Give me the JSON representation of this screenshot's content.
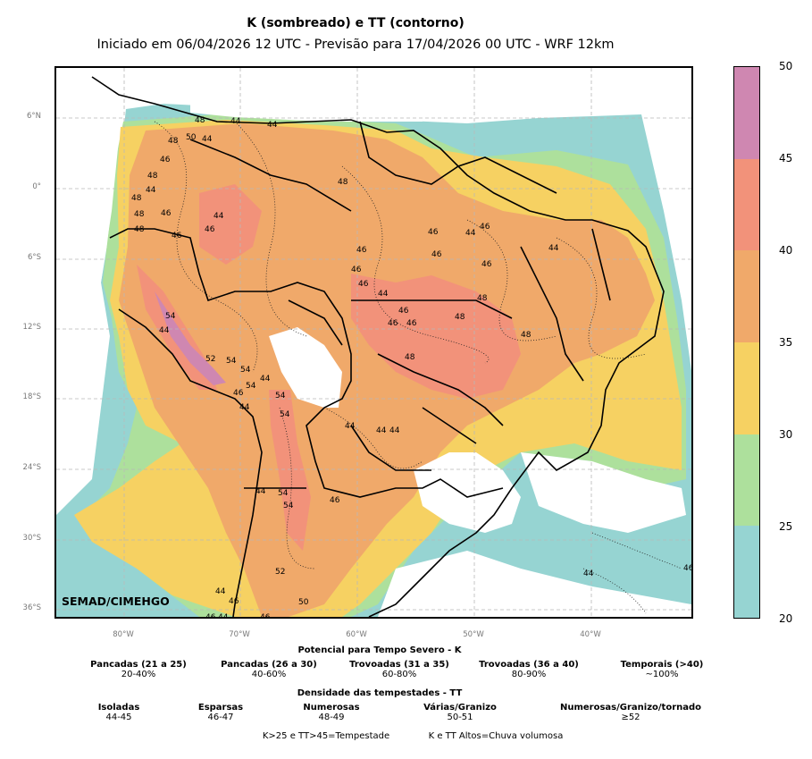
{
  "title": "K (sombreado) e TT (contorno)",
  "subtitle": "Iniciado em 06/04/2026 12 UTC - Previsão para 17/04/2026 00 UTC - WRF 12km",
  "credit": "SEMAD/CIMEHGO",
  "lat_labels": [
    "6°N",
    "0°",
    "6°S",
    "12°S",
    "18°S",
    "24°S",
    "30°S",
    "36°S"
  ],
  "lon_labels": [
    "80°W",
    "70°W",
    "60°W",
    "50°W",
    "40°W"
  ],
  "colorbar": {
    "ticks": [
      "50",
      "45",
      "40",
      "35",
      "30",
      "25",
      "20"
    ],
    "bins": [
      {
        "range": "45-50",
        "color": "#cf87b1"
      },
      {
        "range": "40-45",
        "color": "#f2927a"
      },
      {
        "range": "35-40",
        "color": "#f0a96a"
      },
      {
        "range": "30-35",
        "color": "#f6d162"
      },
      {
        "range": "25-30",
        "color": "#ade09c"
      },
      {
        "range": "20-25",
        "color": "#96d4d2"
      }
    ]
  },
  "contour_labels": [
    "48",
    "44",
    "44",
    "48",
    "50",
    "44",
    "46",
    "48",
    "44",
    "48",
    "48",
    "46",
    "44",
    "48",
    "46",
    "48",
    "46",
    "46",
    "44",
    "46",
    "44",
    "46",
    "46",
    "46",
    "46",
    "44",
    "46",
    "46",
    "48",
    "46",
    "46",
    "48",
    "48",
    "54",
    "44",
    "52",
    "54",
    "54",
    "44",
    "46",
    "54",
    "44",
    "54",
    "54",
    "44",
    "44",
    "44",
    "48",
    "44",
    "54",
    "54",
    "46",
    "52",
    "44",
    "46",
    "50",
    "46",
    "44",
    "46",
    "44",
    "46"
  ],
  "legend": {
    "k_title": "Potencial para Tempo Severo - K",
    "k_items": [
      {
        "label": "Pancadas (21 a 25)",
        "value": "20-40%"
      },
      {
        "label": "Pancadas (26 a 30)",
        "value": "40-60%"
      },
      {
        "label": "Trovoadas (31 a 35)",
        "value": "60-80%"
      },
      {
        "label": "Trovoadas (36 a 40)",
        "value": "80-90%"
      },
      {
        "label": "Temporais (>40)",
        "value": "~100%"
      }
    ],
    "tt_title": "Densidade das tempestades - TT",
    "tt_items": [
      {
        "label": "Isoladas",
        "value": "44-45"
      },
      {
        "label": "Esparsas",
        "value": "46-47"
      },
      {
        "label": "Numerosas",
        "value": "48-49"
      },
      {
        "label": "Várias/Granizo",
        "value": "50-51"
      },
      {
        "label": "Numerosas/Granizo/tornado",
        "value": "≥52"
      }
    ],
    "footer_left": "K>25 e TT>45=Tempestade",
    "footer_right": "K e TT Altos=Chuva volumosa"
  }
}
